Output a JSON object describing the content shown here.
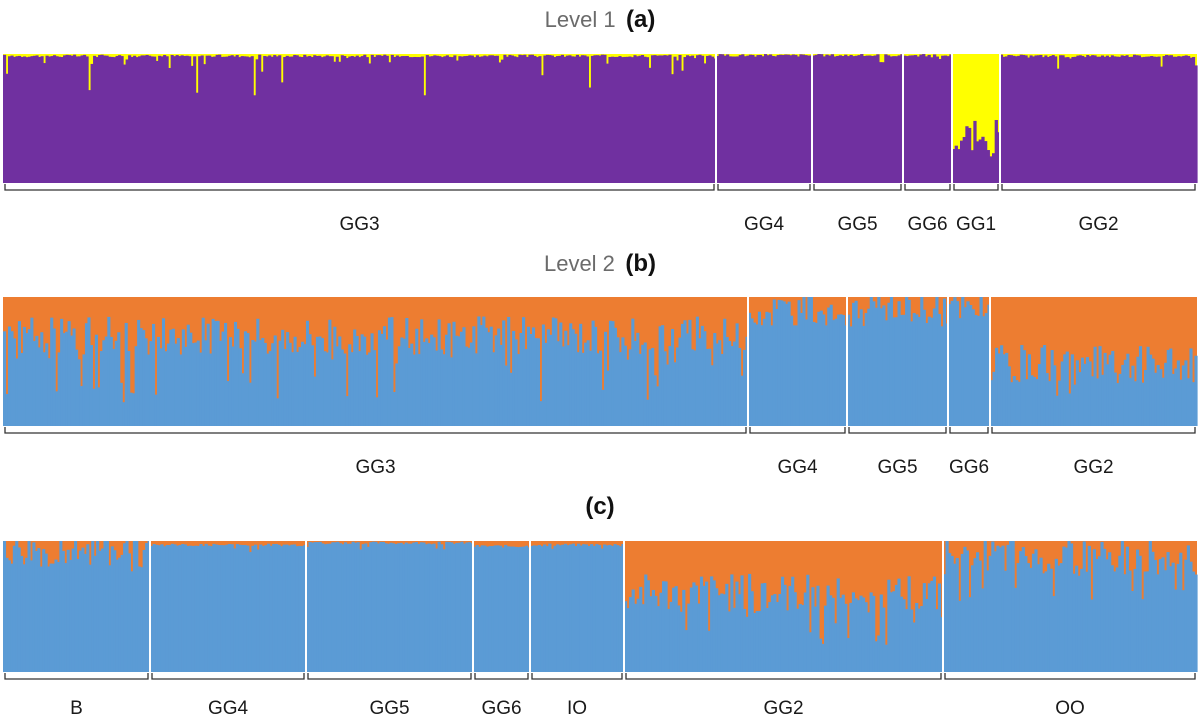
{
  "colors": {
    "level1_base": "#7030A0",
    "level1_top": "#FFFF00",
    "level2_base": "#5B9BD5",
    "level2_top": "#ED7D31",
    "separator": "#ffffff",
    "bracket": "#333333"
  },
  "panels": [
    {
      "id": "a",
      "title_prefix": "Level 1",
      "title_letter": "(a)"
    },
    {
      "id": "b",
      "title_prefix": "Level 2",
      "title_letter": "(b)"
    },
    {
      "id": "c",
      "title_prefix": "",
      "title_letter": "(c)"
    }
  ],
  "chart_data": [
    {
      "type": "bar",
      "subtype": "stacked-admixture",
      "title": "Level 1 (a)",
      "ylim": [
        0,
        1
      ],
      "series": [
        {
          "name": "",
          "color": "#7030A0"
        },
        {
          "name": "",
          "color": "#FFFF00"
        }
      ],
      "groups": [
        {
          "label": "GG3",
          "n": 285,
          "base_min": 0.68,
          "base_typical": 0.985,
          "dips": [
            [
              0.12,
              0.72
            ],
            [
              0.27,
              0.7
            ],
            [
              0.35,
              0.54
            ],
            [
              0.39,
              0.78
            ],
            [
              0.59,
              0.68
            ],
            [
              0.82,
              0.74
            ]
          ]
        },
        {
          "label": "GG4",
          "n": 38,
          "base_min": 0.9,
          "base_typical": 0.99,
          "dips": []
        },
        {
          "label": "GG5",
          "n": 34,
          "base_min": 0.82,
          "base_typical": 0.99,
          "dips": []
        },
        {
          "label": "GG6",
          "n": 18,
          "base_min": 0.92,
          "base_typical": 0.99,
          "dips": []
        },
        {
          "label": "GG1",
          "n": 18,
          "base_min": 0.06,
          "base_typical": 0.35,
          "dips": []
        },
        {
          "label": "GG2",
          "n": 80,
          "base_min": 0.78,
          "base_typical": 0.985,
          "dips": []
        }
      ]
    },
    {
      "type": "bar",
      "subtype": "stacked-admixture",
      "title": "Level 2 (b)",
      "ylim": [
        0,
        1
      ],
      "series": [
        {
          "name": "",
          "color": "#5B9BD5"
        },
        {
          "name": "",
          "color": "#ED7D31"
        }
      ],
      "groups": [
        {
          "label": "GG3",
          "n": 300,
          "base_min": 0.18,
          "base_typical": 0.7
        },
        {
          "label": "GG4",
          "n": 40,
          "base_min": 0.78,
          "base_typical": 0.9
        },
        {
          "label": "GG5",
          "n": 40,
          "base_min": 0.75,
          "base_typical": 0.92
        },
        {
          "label": "GG6",
          "n": 16,
          "base_min": 0.82,
          "base_typical": 0.9
        },
        {
          "label": "GG2",
          "n": 82,
          "base_min": 0.22,
          "base_typical": 0.48
        }
      ]
    },
    {
      "type": "bar",
      "subtype": "stacked-admixture",
      "title": "(c)",
      "ylim": [
        0,
        1
      ],
      "series": [
        {
          "name": "",
          "color": "#5B9BD5"
        },
        {
          "name": "",
          "color": "#ED7D31"
        }
      ],
      "groups": [
        {
          "label": "B",
          "n": 60,
          "base_min": 0.75,
          "base_typical": 0.95
        },
        {
          "label": "GG4",
          "n": 60,
          "base_min": 0.82,
          "base_typical": 0.97
        },
        {
          "label": "GG5",
          "n": 66,
          "base_min": 0.85,
          "base_typical": 0.985
        },
        {
          "label": "GG6",
          "n": 22,
          "base_min": 0.88,
          "base_typical": 0.96
        },
        {
          "label": "IO",
          "n": 36,
          "base_min": 0.88,
          "base_typical": 0.97
        },
        {
          "label": "GG2",
          "n": 126,
          "base_min": 0.2,
          "base_typical": 0.6
        },
        {
          "label": "OO",
          "n": 100,
          "base_min": 0.5,
          "base_typical": 0.88
        }
      ]
    }
  ]
}
